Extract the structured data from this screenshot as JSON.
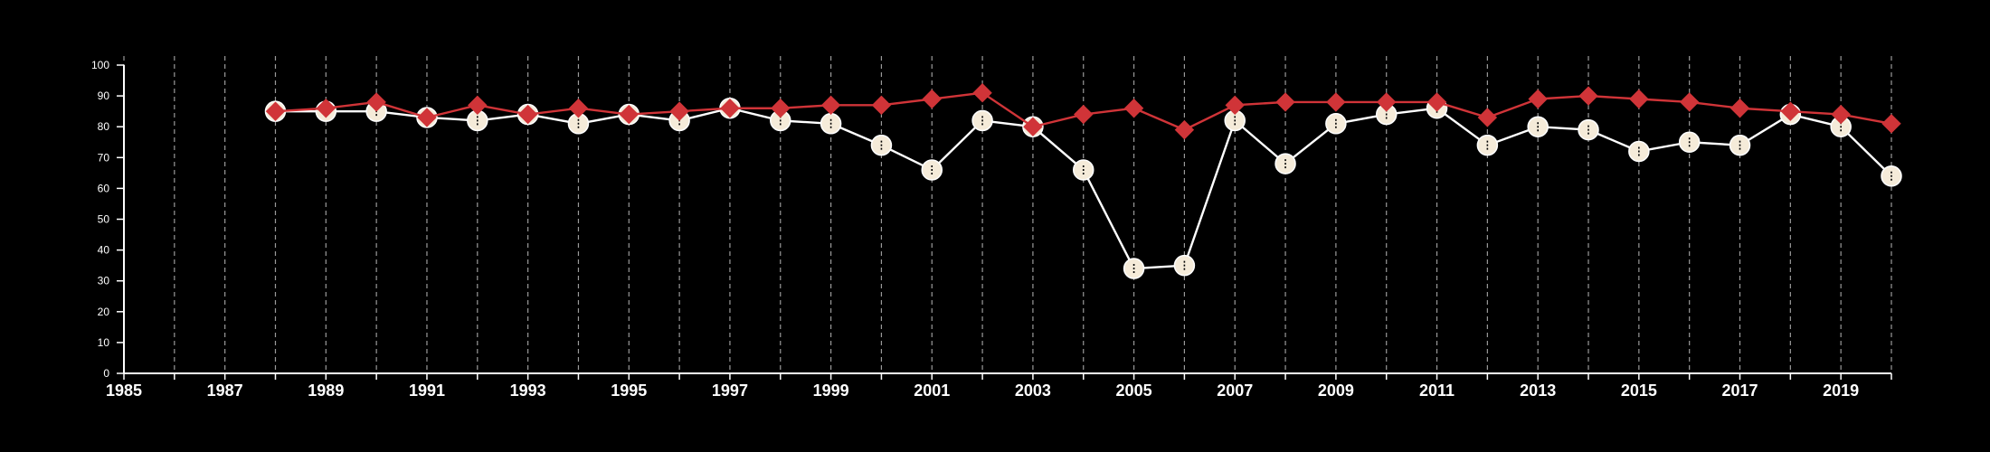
{
  "chart_data": {
    "type": "line",
    "title": "",
    "xlabel": "",
    "ylabel": "",
    "xlim": [
      1985,
      2020
    ],
    "ylim": [
      0,
      100
    ],
    "x_tick_labels": [
      1985,
      1987,
      1989,
      1991,
      1993,
      1995,
      1997,
      1999,
      2001,
      2003,
      2005,
      2007,
      2009,
      2011,
      2013,
      2015,
      2017,
      2019
    ],
    "y_tick_labels": [
      0,
      10,
      20,
      30,
      40,
      50,
      60,
      70,
      80,
      90,
      100
    ],
    "vertical_grid": true,
    "grid_years": [
      1985,
      1986,
      1987,
      1988,
      1989,
      1990,
      1991,
      1992,
      1993,
      1994,
      1995,
      1996,
      1997,
      1998,
      1999,
      2000,
      2001,
      2002,
      2003,
      2004,
      2005,
      2006,
      2007,
      2008,
      2009,
      2010,
      2011,
      2012,
      2013,
      2014,
      2015,
      2016,
      2017,
      2018,
      2019,
      2020
    ],
    "background": "#000000",
    "series": [
      {
        "marker": "circle",
        "color": "#f5ebd9",
        "line_color": "#ffffff",
        "x": [
          1988,
          1989,
          1990,
          1991,
          1992,
          1993,
          1994,
          1995,
          1996,
          1997,
          1998,
          1999,
          2000,
          2001,
          2002,
          2003,
          2004,
          2005,
          2006,
          2007,
          2008,
          2009,
          2010,
          2011,
          2012,
          2013,
          2014,
          2015,
          2016,
          2017,
          2018,
          2019,
          2020
        ],
        "values": [
          85,
          85,
          85,
          83,
          82,
          84,
          81,
          84,
          82,
          86,
          82,
          81,
          74,
          66,
          82,
          80,
          66,
          34,
          35,
          82,
          68,
          81,
          84,
          86,
          74,
          80,
          79,
          72,
          75,
          74,
          84,
          80,
          64
        ]
      },
      {
        "marker": "diamond",
        "color": "#d03438",
        "line_color": "#d03438",
        "x": [
          1988,
          1989,
          1990,
          1991,
          1992,
          1993,
          1994,
          1995,
          1996,
          1997,
          1998,
          1999,
          2000,
          2001,
          2002,
          2003,
          2004,
          2005,
          2006,
          2007,
          2008,
          2009,
          2010,
          2011,
          2012,
          2013,
          2014,
          2015,
          2016,
          2017,
          2018,
          2019,
          2020
        ],
        "values": [
          85,
          86,
          88,
          83,
          87,
          84,
          86,
          84,
          85,
          86,
          86,
          87,
          87,
          89,
          91,
          80,
          84,
          86,
          79,
          87,
          88,
          88,
          88,
          88,
          83,
          89,
          90,
          89,
          88,
          86,
          85,
          84,
          81
        ]
      }
    ]
  }
}
